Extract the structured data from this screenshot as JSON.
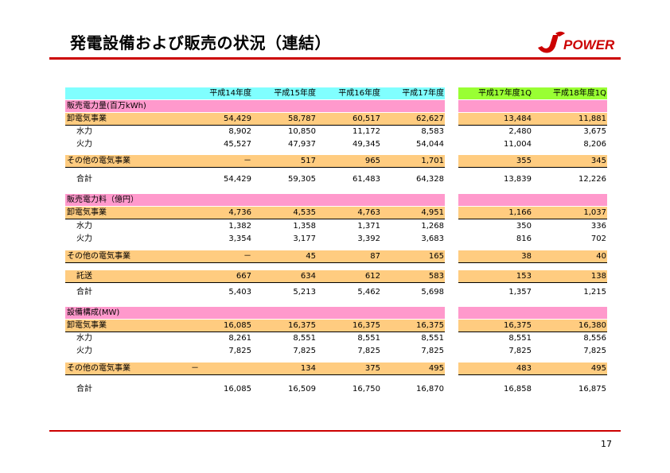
{
  "title": "発電設備および販売の状況（連結）",
  "logo_text": "POWER",
  "page_number": "17",
  "colors": {
    "accent_red": "#cc0000",
    "header_cyan": "#80ffff",
    "header_green": "#99ff33",
    "section_pink": "#ff99cc",
    "row_orange": "#ffcc80"
  },
  "headers": [
    "平成14年度",
    "平成15年度",
    "平成16年度",
    "平成17年度",
    "平成17年度1Q",
    "平成18年度1Q"
  ],
  "sections": [
    {
      "label": "販売電力量(百万kWh)",
      "oroshi": {
        "label": "卸電気事業",
        "values": [
          "54,429",
          "58,787",
          "60,517",
          "62,627",
          "13,484",
          "11,881"
        ]
      },
      "suiryoku": {
        "label": "水力",
        "values": [
          "8,902",
          "10,850",
          "11,172",
          "8,583",
          "2,480",
          "3,675"
        ]
      },
      "karyoku": {
        "label": "火力",
        "values": [
          "45,527",
          "47,937",
          "49,345",
          "54,044",
          "11,004",
          "8,206"
        ]
      },
      "other": {
        "label": "その他の電気事業",
        "values": [
          "－",
          "517",
          "965",
          "1,701",
          "355",
          "345"
        ]
      },
      "total": {
        "label": "合計",
        "values": [
          "54,429",
          "59,305",
          "61,483",
          "64,328",
          "13,839",
          "12,226"
        ]
      }
    },
    {
      "label": "販売電力料（億円）",
      "oroshi": {
        "label": "卸電気事業",
        "values": [
          "4,736",
          "4,535",
          "4,763",
          "4,951",
          "1,166",
          "1,037"
        ]
      },
      "suiryoku": {
        "label": "水力",
        "values": [
          "1,382",
          "1,358",
          "1,371",
          "1,268",
          "350",
          "336"
        ]
      },
      "karyoku": {
        "label": "火力",
        "values": [
          "3,354",
          "3,177",
          "3,392",
          "3,683",
          "816",
          "702"
        ]
      },
      "other": {
        "label": "その他の電気事業",
        "values": [
          "－",
          "45",
          "87",
          "165",
          "38",
          "40"
        ]
      },
      "takuso": {
        "label": "託送",
        "values": [
          "667",
          "634",
          "612",
          "583",
          "153",
          "138"
        ]
      },
      "total": {
        "label": "合計",
        "values": [
          "5,403",
          "5,213",
          "5,462",
          "5,698",
          "1,357",
          "1,215"
        ]
      }
    },
    {
      "label": "設備構成(MW)",
      "oroshi": {
        "label": "卸電気事業",
        "values": [
          "16,085",
          "16,375",
          "16,375",
          "16,375",
          "16,375",
          "16,380"
        ]
      },
      "suiryoku": {
        "label": "水力",
        "values": [
          "8,261",
          "8,551",
          "8,551",
          "8,551",
          "8,551",
          "8,556"
        ]
      },
      "karyoku": {
        "label": "火力",
        "values": [
          "7,825",
          "7,825",
          "7,825",
          "7,825",
          "7,825",
          "7,825"
        ]
      },
      "other": {
        "label": "その他の電気事業",
        "values": [
          "－",
          "134",
          "375",
          "495",
          "483",
          "495"
        ]
      },
      "total": {
        "label": "合計",
        "values": [
          "16,085",
          "16,509",
          "16,750",
          "16,870",
          "16,858",
          "16,875"
        ]
      }
    }
  ]
}
